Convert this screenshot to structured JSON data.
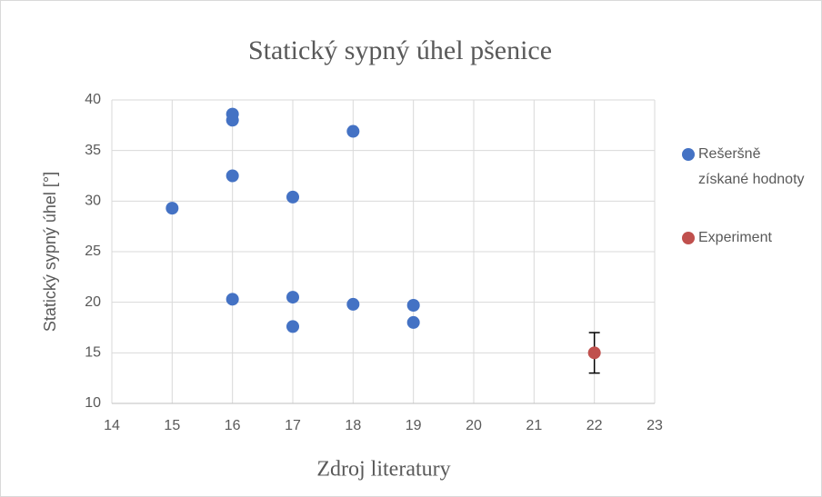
{
  "chart_data": {
    "type": "scatter",
    "title": "Statický sypný úhel pšenice",
    "x_label": "Zdroj literatury",
    "y_label": "Statický sypný úhel [°]",
    "xlim": [
      14,
      23
    ],
    "xticks": [
      14,
      15,
      16,
      17,
      18,
      19,
      20,
      21,
      22,
      23
    ],
    "ylim": [
      10,
      40
    ],
    "yticks": [
      10,
      15,
      20,
      25,
      30,
      35,
      40
    ],
    "grid": true,
    "legend": "right",
    "series": [
      {
        "name": "Rešeršně získané hodnoty",
        "color": "#4472c4",
        "x": [
          15,
          16,
          16,
          16,
          16,
          17,
          17,
          17,
          18,
          18,
          19,
          19
        ],
        "values": [
          29.3,
          38.6,
          38,
          32.5,
          20.3,
          30.4,
          20.5,
          17.6,
          36.9,
          19.8,
          19.7,
          18
        ]
      },
      {
        "name": "Experiment",
        "color": "#c0504d",
        "x": [
          22
        ],
        "values": [
          15
        ],
        "errors": [
          2
        ]
      }
    ]
  }
}
